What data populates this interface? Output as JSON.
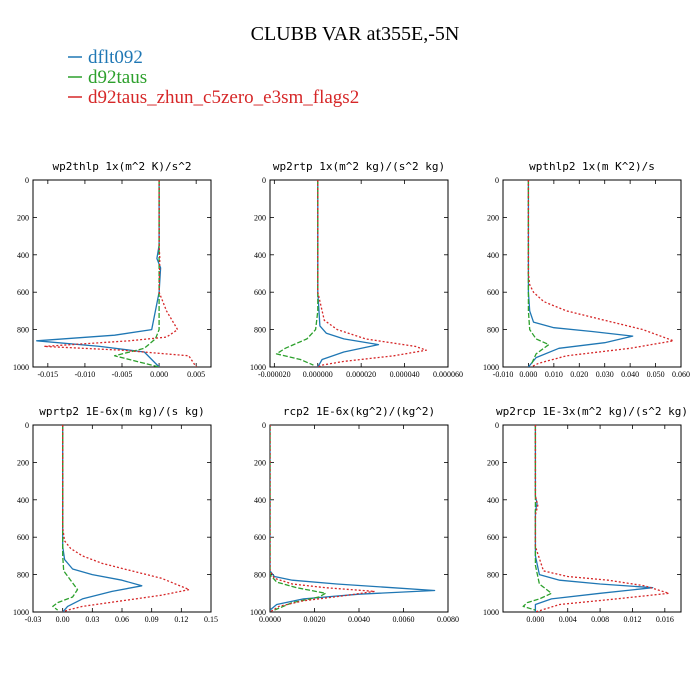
{
  "figure": {
    "title": "CLUBB VAR at355E,-5N",
    "legend": [
      {
        "label": "dflt092",
        "color": "#1f77b4"
      },
      {
        "label": "d92taus",
        "color": "#2ca02c"
      },
      {
        "label": "d92taus_zhun_c5zero_e3sm_flags2",
        "color": "#d62728"
      }
    ]
  },
  "chart_data": [
    {
      "type": "line",
      "title": "wp2thlp  1x(m^2 K)/s^2",
      "xlim": [
        -0.017,
        0.007
      ],
      "ylim": [
        0,
        1000
      ],
      "y_inverted": true,
      "xticks": [
        -0.015,
        -0.01,
        -0.005,
        0.0,
        0.005
      ],
      "xtick_labels": [
        "-0.015",
        "-0.010",
        "-0.005",
        "0.000",
        "0.005"
      ],
      "yticks": [
        0,
        200,
        400,
        600,
        800,
        1000
      ],
      "series": [
        {
          "name": "dflt092",
          "x": [
            0,
            0,
            -0.0003,
            0.0002,
            0,
            -0.001,
            -0.006,
            -0.0165,
            -0.008,
            -0.002,
            0
          ],
          "y": [
            0,
            350,
            420,
            470,
            600,
            800,
            830,
            860,
            890,
            920,
            1000
          ]
        },
        {
          "name": "d92taus",
          "x": [
            0,
            0,
            0,
            0,
            -0.0005,
            -0.002,
            -0.006,
            -0.004,
            -0.002,
            0
          ],
          "y": [
            0,
            400,
            600,
            800,
            850,
            900,
            940,
            960,
            980,
            1000
          ]
        },
        {
          "name": "d92taus_zhun_c5zero_e3sm_flags2",
          "x": [
            0,
            0,
            0.0001,
            0,
            0.001,
            0.0025,
            0.001,
            -0.004,
            -0.0155,
            -0.005,
            0.004,
            0.005
          ],
          "y": [
            0,
            350,
            420,
            600,
            700,
            800,
            840,
            860,
            890,
            910,
            940,
            1000
          ]
        }
      ]
    },
    {
      "type": "line",
      "title": "wp2rtp  1x(m^2 kg)/(s^2 kg)",
      "xlim": [
        -2.2e-05,
        6e-05
      ],
      "ylim": [
        0,
        1000
      ],
      "y_inverted": true,
      "xticks": [
        -2e-05,
        0.0,
        2e-05,
        4e-05,
        6e-05
      ],
      "xtick_labels": [
        "-0.000020",
        "0.000000",
        "0.000020",
        "0.000040",
        "0.000060"
      ],
      "yticks": [
        0,
        200,
        400,
        600,
        800,
        1000
      ],
      "series": [
        {
          "name": "dflt092",
          "x": [
            0,
            0,
            1e-06,
            4e-06,
            1.2e-05,
            2.8e-05,
            1.2e-05,
            2e-06,
            0
          ],
          "y": [
            0,
            600,
            780,
            820,
            850,
            880,
            920,
            960,
            1000
          ]
        },
        {
          "name": "d92taus",
          "x": [
            0,
            0,
            -1e-06,
            -5e-06,
            -1.5e-05,
            -1.9e-05,
            -8e-06,
            -2e-06
          ],
          "y": [
            0,
            700,
            800,
            850,
            900,
            930,
            960,
            990
          ]
        },
        {
          "name": "d92taus_zhun_c5zero_e3sm_flags2",
          "x": [
            0,
            0,
            3e-06,
            9e-06,
            2.2e-05,
            4.5e-05,
            5e-05,
            3.5e-05,
            1.2e-05,
            2e-06,
            0
          ],
          "y": [
            0,
            600,
            750,
            800,
            850,
            890,
            910,
            940,
            970,
            990,
            1000
          ]
        }
      ]
    },
    {
      "type": "line",
      "title": "wpthlp2  1x(m K^2)/s",
      "xlim": [
        -0.01,
        0.06
      ],
      "ylim": [
        0,
        1000
      ],
      "y_inverted": true,
      "xticks": [
        -0.01,
        0.0,
        0.01,
        0.02,
        0.03,
        0.04,
        0.05,
        0.06
      ],
      "xtick_labels": [
        "-0.010",
        "0.000",
        "0.010",
        "0.020",
        "0.030",
        "0.040",
        "0.050",
        "0.060"
      ],
      "yticks": [
        0,
        200,
        400,
        600,
        800,
        1000
      ],
      "series": [
        {
          "name": "dflt092",
          "x": [
            0,
            0,
            0.0005,
            0.002,
            0.01,
            0.025,
            0.041,
            0.03,
            0.012,
            0.003,
            0
          ],
          "y": [
            0,
            600,
            700,
            760,
            790,
            810,
            835,
            870,
            900,
            950,
            1000
          ]
        },
        {
          "name": "d92taus",
          "x": [
            0,
            0,
            0.0005,
            0.003,
            0.008,
            0.003,
            0.001
          ],
          "y": [
            0,
            700,
            800,
            850,
            880,
            930,
            990
          ]
        },
        {
          "name": "d92taus_zhun_c5zero_e3sm_flags2",
          "x": [
            0,
            0,
            0.0005,
            0.002,
            0.006,
            0.015,
            0.03,
            0.045,
            0.057,
            0.04,
            0.015,
            0.004,
            0.001
          ],
          "y": [
            0,
            500,
            560,
            600,
            650,
            700,
            750,
            800,
            860,
            900,
            940,
            980,
            1000
          ]
        }
      ]
    },
    {
      "type": "line",
      "title": "wprtp2  1E-6x(m kg)/(s kg)",
      "xlim": [
        -0.03,
        0.15
      ],
      "ylim": [
        0,
        1000
      ],
      "y_inverted": true,
      "xticks": [
        -0.03,
        0.0,
        0.03,
        0.06,
        0.09,
        0.12,
        0.15
      ],
      "xtick_labels": [
        "-0.03",
        "0.00",
        "0.03",
        "0.06",
        "0.09",
        "0.12",
        "0.15"
      ],
      "yticks": [
        0,
        200,
        400,
        600,
        800,
        1000
      ],
      "series": [
        {
          "name": "dflt092",
          "x": [
            0,
            0,
            0.002,
            0.01,
            0.03,
            0.06,
            0.08,
            0.05,
            0.02,
            0.005,
            0
          ],
          "y": [
            0,
            650,
            720,
            770,
            800,
            830,
            860,
            890,
            930,
            970,
            1000
          ]
        },
        {
          "name": "d92taus",
          "x": [
            0,
            0,
            0.001,
            0.008,
            0.015,
            0.01,
            -0.005,
            -0.01,
            -0.005
          ],
          "y": [
            0,
            700,
            780,
            830,
            880,
            920,
            950,
            970,
            990
          ]
        },
        {
          "name": "d92taus_zhun_c5zero_e3sm_flags2",
          "x": [
            0,
            0,
            0.002,
            0.008,
            0.02,
            0.04,
            0.07,
            0.1,
            0.128,
            0.1,
            0.06,
            0.02,
            0.005,
            0
          ],
          "y": [
            0,
            550,
            620,
            660,
            700,
            740,
            780,
            820,
            880,
            910,
            940,
            970,
            990,
            1000
          ]
        }
      ]
    },
    {
      "type": "line",
      "title": "rcp2  1E-6x(kg^2)/(kg^2)",
      "xlim": [
        0.0,
        0.008
      ],
      "ylim": [
        0,
        1000
      ],
      "y_inverted": true,
      "xticks": [
        0.0,
        0.002,
        0.004,
        0.006,
        0.008
      ],
      "xtick_labels": [
        "0.0000",
        "0.0020",
        "0.0040",
        "0.0060",
        "0.0080"
      ],
      "yticks": [
        0,
        200,
        400,
        600,
        800,
        1000
      ],
      "series": [
        {
          "name": "dflt092",
          "x": [
            0,
            0,
            0.0002,
            0.001,
            0.003,
            0.0055,
            0.0074,
            0.004,
            0.0015,
            0.0003,
            0
          ],
          "y": [
            0,
            780,
            810,
            830,
            850,
            870,
            885,
            905,
            930,
            960,
            990
          ]
        },
        {
          "name": "d92taus",
          "x": [
            0,
            0,
            0.0003,
            0.0012,
            0.0025,
            0.0022,
            0.001,
            0.0002
          ],
          "y": [
            0,
            800,
            840,
            870,
            900,
            920,
            950,
            990
          ]
        },
        {
          "name": "d92taus_zhun_c5zero_e3sm_flags2",
          "x": [
            0,
            0,
            0.0002,
            0.001,
            0.0025,
            0.0047,
            0.0035,
            0.0015,
            0.0004,
            0
          ],
          "y": [
            0,
            780,
            820,
            850,
            870,
            890,
            910,
            940,
            970,
            1000
          ]
        }
      ]
    },
    {
      "type": "line",
      "title": "wp2rcp  1E-3x(m^2 kg)/(s^2 kg)",
      "xlim": [
        -0.004,
        0.018
      ],
      "ylim": [
        0,
        1000
      ],
      "y_inverted": true,
      "xticks": [
        0.0,
        0.004,
        0.008,
        0.012,
        0.016
      ],
      "xtick_labels": [
        "0.000",
        "0.004",
        "0.008",
        "0.012",
        "0.016"
      ],
      "yticks": [
        0,
        200,
        400,
        600,
        800,
        1000
      ],
      "series": [
        {
          "name": "dflt092",
          "x": [
            0,
            0,
            0.0002,
            0,
            0,
            0.0005,
            0.003,
            0.008,
            0.0145,
            0.008,
            0.002,
            0,
            0
          ],
          "y": [
            0,
            380,
            420,
            460,
            700,
            800,
            830,
            850,
            870,
            900,
            930,
            960,
            1000
          ]
        },
        {
          "name": "d92taus",
          "x": [
            0,
            0,
            0.0005,
            0.002,
            0.0005,
            -0.001,
            -0.0015,
            0
          ],
          "y": [
            0,
            750,
            850,
            900,
            930,
            950,
            970,
            990
          ]
        },
        {
          "name": "d92taus_zhun_c5zero_e3sm_flags2",
          "x": [
            0,
            0,
            0.0003,
            0,
            0,
            0.001,
            0.004,
            0.009,
            0.0135,
            0.0165,
            0.01,
            0.003,
            0
          ],
          "y": [
            0,
            380,
            430,
            480,
            650,
            780,
            810,
            830,
            860,
            900,
            930,
            960,
            1000
          ]
        }
      ]
    }
  ]
}
